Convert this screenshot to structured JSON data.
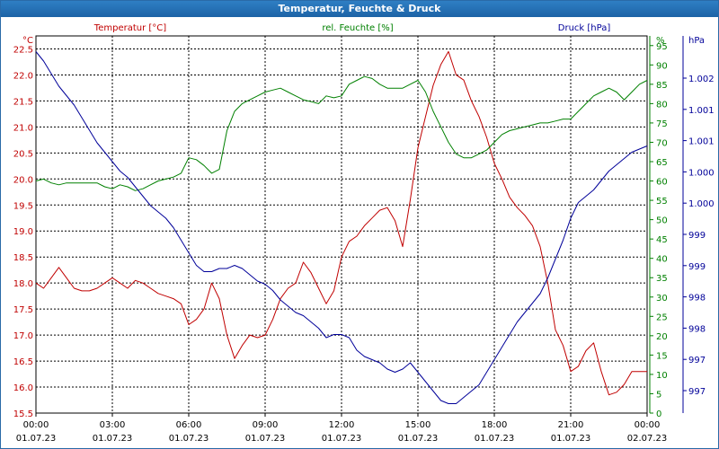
{
  "window": {
    "title": "Temperatur, Feuchte & Druck"
  },
  "colors": {
    "temperature": "#c00000",
    "humidity": "#008000",
    "pressure": "#000099",
    "grid": "#000000",
    "titlebar": "#1d63a6"
  },
  "chart_data": {
    "type": "line",
    "title": "Temperatur, Feuchte & Druck",
    "grid": true,
    "x_range_hours": [
      0,
      24
    ],
    "x_ticks": [
      {
        "h": 0,
        "time": "00:00",
        "date": "01.07.23"
      },
      {
        "h": 3,
        "time": "03:00",
        "date": "01.07.23"
      },
      {
        "h": 6,
        "time": "06:00",
        "date": "01.07.23"
      },
      {
        "h": 9,
        "time": "09:00",
        "date": "01.07.23"
      },
      {
        "h": 12,
        "time": "12:00",
        "date": "01.07.23"
      },
      {
        "h": 15,
        "time": "15:00",
        "date": "01.07.23"
      },
      {
        "h": 18,
        "time": "18:00",
        "date": "01.07.23"
      },
      {
        "h": 21,
        "time": "21:00",
        "date": "01.07.23"
      },
      {
        "h": 24,
        "time": "00:00",
        "date": "02.07.23"
      }
    ],
    "axes": {
      "temperature": {
        "label": "Temperatur [°C]",
        "unit": "°C",
        "range": [
          15.5,
          22.75
        ],
        "ticks": [
          "22.5",
          "22.0",
          "21.5",
          "21.0",
          "20.5",
          "20.0",
          "19.5",
          "19.0",
          "18.5",
          "18.0",
          "17.5",
          "17.0",
          "16.5",
          "16.0",
          "15.5"
        ]
      },
      "humidity": {
        "label": "rel. Feuchte [%]",
        "unit": "%",
        "range": [
          0,
          97.5
        ],
        "ticks": [
          "95",
          "90",
          "85",
          "80",
          "75",
          "70",
          "65",
          "60",
          "55",
          "50",
          "45",
          "40",
          "35",
          "30",
          "25",
          "20",
          "15",
          "10",
          "5",
          "0"
        ]
      },
      "pressure": {
        "label": "Druck [hPa]",
        "unit": "hPa",
        "range": [
          996.5,
          1002.5
        ],
        "ticks": [
          "1.002",
          "1.001",
          "1.001",
          "1.000",
          "1.000",
          "999",
          "999",
          "998",
          "998",
          "997",
          "997"
        ]
      }
    },
    "series": [
      {
        "name": "Temperatur [°C]",
        "axis": "temperature",
        "x": [
          0,
          0.3,
          0.6,
          0.9,
          1.2,
          1.5,
          1.8,
          2.1,
          2.4,
          2.7,
          3.0,
          3.3,
          3.6,
          3.9,
          4.2,
          4.5,
          4.8,
          5.1,
          5.4,
          5.7,
          6.0,
          6.3,
          6.6,
          6.9,
          7.2,
          7.5,
          7.8,
          8.1,
          8.4,
          8.7,
          9.0,
          9.3,
          9.6,
          9.9,
          10.2,
          10.5,
          10.8,
          11.1,
          11.4,
          11.7,
          12.0,
          12.3,
          12.6,
          12.9,
          13.2,
          13.5,
          13.8,
          14.1,
          14.4,
          14.7,
          15.0,
          15.3,
          15.6,
          15.9,
          16.2,
          16.5,
          16.8,
          17.1,
          17.4,
          17.7,
          18.0,
          18.3,
          18.6,
          18.9,
          19.2,
          19.5,
          19.8,
          20.1,
          20.4,
          20.7,
          21.0,
          21.3,
          21.6,
          21.9,
          22.2,
          22.5,
          22.8,
          23.1,
          23.4,
          23.7,
          24.0
        ],
        "values": [
          18.0,
          17.9,
          18.1,
          18.3,
          18.1,
          17.9,
          17.85,
          17.85,
          17.9,
          18.0,
          18.1,
          18.0,
          17.9,
          18.05,
          18.0,
          17.9,
          17.8,
          17.75,
          17.7,
          17.6,
          17.2,
          17.3,
          17.5,
          18.0,
          17.7,
          17.0,
          16.55,
          16.8,
          17.0,
          16.95,
          17.0,
          17.3,
          17.7,
          17.9,
          18.0,
          18.4,
          18.2,
          17.9,
          17.6,
          17.85,
          18.5,
          18.8,
          18.9,
          19.1,
          19.25,
          19.4,
          19.45,
          19.2,
          18.7,
          19.6,
          20.6,
          21.2,
          21.8,
          22.2,
          22.45,
          22.0,
          21.9,
          21.5,
          21.2,
          20.8,
          20.3,
          20.0,
          19.65,
          19.45,
          19.3,
          19.1,
          18.7,
          18.0,
          17.1,
          16.8,
          16.3,
          16.4,
          16.7,
          16.85,
          16.3,
          15.85,
          15.9,
          16.05,
          16.3,
          16.3,
          16.3
        ]
      },
      {
        "name": "rel. Feuchte [%]",
        "axis": "humidity",
        "x": [
          0,
          0.3,
          0.6,
          0.9,
          1.2,
          1.5,
          1.8,
          2.1,
          2.4,
          2.7,
          3.0,
          3.3,
          3.6,
          3.9,
          4.2,
          4.5,
          4.8,
          5.1,
          5.4,
          5.7,
          6.0,
          6.3,
          6.6,
          6.9,
          7.2,
          7.5,
          7.8,
          8.1,
          8.4,
          8.7,
          9.0,
          9.3,
          9.6,
          9.9,
          10.2,
          10.5,
          10.8,
          11.1,
          11.4,
          11.7,
          12.0,
          12.3,
          12.6,
          12.9,
          13.2,
          13.5,
          13.8,
          14.1,
          14.4,
          14.7,
          15.0,
          15.3,
          15.6,
          15.9,
          16.2,
          16.5,
          16.8,
          17.1,
          17.4,
          17.7,
          18.0,
          18.3,
          18.6,
          18.9,
          19.2,
          19.5,
          19.8,
          20.1,
          20.4,
          20.7,
          21.0,
          21.3,
          21.6,
          21.9,
          22.2,
          22.5,
          22.8,
          23.1,
          23.4,
          23.7,
          24.0
        ],
        "values": [
          60,
          60.5,
          59.5,
          59,
          59.5,
          59.5,
          59.5,
          59.5,
          59.5,
          58.5,
          58,
          59,
          58.5,
          57.5,
          58,
          59,
          60,
          60.5,
          61,
          62,
          66,
          65.5,
          64,
          62,
          63,
          73,
          78,
          80,
          81,
          82,
          83,
          83.5,
          84,
          83,
          82,
          81,
          80.5,
          80,
          82,
          81.5,
          82,
          85,
          86,
          87,
          86.5,
          85,
          84,
          84,
          84,
          85,
          86,
          83,
          78,
          74,
          70,
          67,
          66,
          66,
          67,
          68,
          70,
          72,
          73,
          73.5,
          74,
          74.5,
          75,
          75,
          75.5,
          76,
          76,
          78,
          80,
          82,
          83,
          84,
          83,
          81,
          83,
          85,
          86
        ]
      },
      {
        "name": "Druck [hPa]",
        "axis": "pressure",
        "x": [
          0,
          0.3,
          0.6,
          0.9,
          1.2,
          1.5,
          1.8,
          2.1,
          2.4,
          2.7,
          3.0,
          3.3,
          3.6,
          3.9,
          4.2,
          4.5,
          4.8,
          5.1,
          5.4,
          5.7,
          6.0,
          6.3,
          6.6,
          6.9,
          7.2,
          7.5,
          7.8,
          8.1,
          8.4,
          8.7,
          9.0,
          9.3,
          9.6,
          9.9,
          10.2,
          10.5,
          10.8,
          11.1,
          11.4,
          11.7,
          12.0,
          12.3,
          12.6,
          12.9,
          13.2,
          13.5,
          13.8,
          14.1,
          14.4,
          14.7,
          15.0,
          15.3,
          15.6,
          15.9,
          16.2,
          16.5,
          16.8,
          17.1,
          17.4,
          17.7,
          18.0,
          18.3,
          18.6,
          18.9,
          19.2,
          19.5,
          19.8,
          20.1,
          20.4,
          20.7,
          21.0,
          21.3,
          21.6,
          21.9,
          22.2,
          22.5,
          22.8,
          23.1,
          23.4,
          23.7,
          24.0
        ],
        "values": [
          1002.25,
          1002.1,
          1001.9,
          1001.7,
          1001.55,
          1001.4,
          1001.2,
          1001.0,
          1000.8,
          1000.65,
          1000.5,
          1000.35,
          1000.25,
          1000.1,
          999.95,
          999.8,
          999.7,
          999.6,
          999.45,
          999.25,
          999.05,
          998.85,
          998.75,
          998.75,
          998.8,
          998.8,
          998.85,
          998.8,
          998.7,
          998.6,
          998.55,
          998.45,
          998.3,
          998.2,
          998.1,
          998.05,
          997.95,
          997.85,
          997.7,
          997.75,
          997.75,
          997.7,
          997.5,
          997.4,
          997.35,
          997.3,
          997.2,
          997.15,
          997.2,
          997.3,
          997.15,
          997.0,
          996.85,
          996.7,
          996.65,
          996.65,
          996.75,
          996.85,
          996.95,
          997.15,
          997.35,
          997.55,
          997.75,
          997.95,
          998.1,
          998.25,
          998.4,
          998.65,
          998.95,
          999.25,
          999.6,
          999.85,
          999.95,
          1000.05,
          1000.2,
          1000.35,
          1000.45,
          1000.55,
          1000.65,
          1000.7,
          1000.75
        ]
      }
    ]
  }
}
